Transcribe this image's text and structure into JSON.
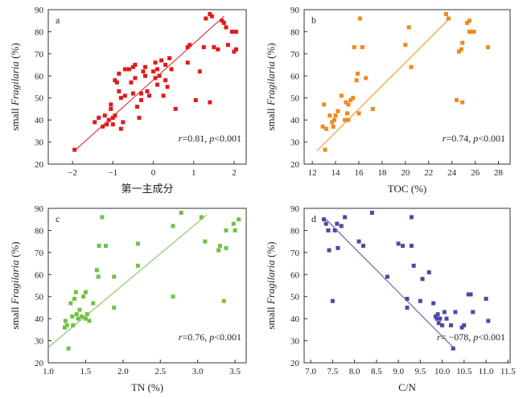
{
  "chart_data": [
    {
      "panel_label": "a",
      "type": "scatter",
      "xlabel": "第一主成分",
      "ylabel_prefix": "small ",
      "ylabel_italic": "Fragilaria",
      "ylabel_suffix": " (%)",
      "xlim": [
        -2.6,
        2.3
      ],
      "ylim": [
        20,
        90
      ],
      "xticks": [
        -2,
        -1,
        0,
        1,
        2
      ],
      "xtick_labels": [
        "−2",
        "−1",
        "0",
        "1",
        "2"
      ],
      "yticks": [
        20,
        30,
        40,
        50,
        60,
        70,
        80,
        90
      ],
      "color": "#e01b1b",
      "marker": "square",
      "annotation": "r=0.81, p<0.001",
      "fit_line": [
        [
          -1.95,
          26
        ],
        [
          1.75,
          87
        ]
      ],
      "points": [
        [
          -1.95,
          26.5
        ],
        [
          -1.45,
          39
        ],
        [
          -1.35,
          41
        ],
        [
          -1.25,
          37
        ],
        [
          -1.2,
          42
        ],
        [
          -1.15,
          38
        ],
        [
          -1.1,
          40
        ],
        [
          -1.05,
          45
        ],
        [
          -1.05,
          47
        ],
        [
          -1.0,
          38
        ],
        [
          -1.0,
          41
        ],
        [
          -0.95,
          42
        ],
        [
          -0.95,
          58
        ],
        [
          -0.9,
          57
        ],
        [
          -0.85,
          61
        ],
        [
          -0.85,
          53
        ],
        [
          -0.8,
          50
        ],
        [
          -0.8,
          36
        ],
        [
          -0.75,
          39
        ],
        [
          -0.7,
          51
        ],
        [
          -0.7,
          63
        ],
        [
          -0.6,
          63
        ],
        [
          -0.55,
          57
        ],
        [
          -0.5,
          52
        ],
        [
          -0.5,
          64
        ],
        [
          -0.45,
          59
        ],
        [
          -0.45,
          65
        ],
        [
          -0.4,
          46
        ],
        [
          -0.35,
          41
        ],
        [
          -0.3,
          49
        ],
        [
          -0.3,
          52
        ],
        [
          -0.25,
          62
        ],
        [
          -0.2,
          60
        ],
        [
          -0.2,
          64
        ],
        [
          -0.15,
          53
        ],
        [
          -0.1,
          51
        ],
        [
          0.0,
          62
        ],
        [
          0.05,
          59
        ],
        [
          0.05,
          66
        ],
        [
          0.1,
          63
        ],
        [
          0.1,
          56
        ],
        [
          0.15,
          60
        ],
        [
          0.2,
          67
        ],
        [
          0.25,
          51
        ],
        [
          0.3,
          65
        ],
        [
          0.3,
          58
        ],
        [
          0.35,
          55
        ],
        [
          0.4,
          68
        ],
        [
          0.45,
          63
        ],
        [
          0.55,
          45
        ],
        [
          0.85,
          73
        ],
        [
          0.85,
          66
        ],
        [
          0.9,
          74
        ],
        [
          1.05,
          49
        ],
        [
          1.15,
          62
        ],
        [
          1.25,
          73
        ],
        [
          1.3,
          86
        ],
        [
          1.4,
          88
        ],
        [
          1.4,
          48
        ],
        [
          1.45,
          87
        ],
        [
          1.5,
          73
        ],
        [
          1.6,
          72
        ],
        [
          1.7,
          85
        ],
        [
          1.75,
          84
        ],
        [
          1.8,
          82
        ],
        [
          1.85,
          74
        ],
        [
          1.95,
          80
        ],
        [
          2.0,
          71
        ],
        [
          2.05,
          80
        ],
        [
          2.05,
          72
        ]
      ]
    },
    {
      "panel_label": "b",
      "type": "scatter",
      "xlabel": "TOC (%)",
      "ylabel_prefix": "small ",
      "ylabel_italic": "Fragilaria",
      "ylabel_suffix": " (%)",
      "xlim": [
        11.3,
        29
      ],
      "ylim": [
        20,
        90
      ],
      "xticks": [
        12,
        14,
        16,
        18,
        20,
        22,
        24,
        26,
        28
      ],
      "xtick_labels": [
        "12",
        "14",
        "16",
        "18",
        "20",
        "22",
        "24",
        "26",
        "28"
      ],
      "yticks": [
        20,
        30,
        40,
        50,
        60,
        70,
        80,
        90
      ],
      "color": "#f0891a",
      "marker": "square",
      "annotation": "r=0.74, p<0.001",
      "fit_line": [
        [
          12.4,
          26
        ],
        [
          23.8,
          86
        ]
      ],
      "points": [
        [
          12.9,
          37
        ],
        [
          13.0,
          47
        ],
        [
          13.1,
          26.5
        ],
        [
          13.2,
          36
        ],
        [
          13.5,
          42
        ],
        [
          13.7,
          39
        ],
        [
          13.8,
          37
        ],
        [
          13.9,
          40
        ],
        [
          14.0,
          42
        ],
        [
          14.2,
          44
        ],
        [
          14.5,
          51
        ],
        [
          14.8,
          40
        ],
        [
          14.9,
          48
        ],
        [
          15.0,
          43
        ],
        [
          15.1,
          47
        ],
        [
          15.1,
          40
        ],
        [
          15.3,
          49
        ],
        [
          15.5,
          50
        ],
        [
          15.6,
          73
        ],
        [
          15.8,
          58
        ],
        [
          15.9,
          61
        ],
        [
          16.0,
          43
        ],
        [
          16.1,
          86
        ],
        [
          16.3,
          73
        ],
        [
          16.6,
          59
        ],
        [
          17.2,
          45
        ],
        [
          20.0,
          74
        ],
        [
          20.3,
          82
        ],
        [
          20.5,
          64
        ],
        [
          23.5,
          88
        ],
        [
          23.7,
          86
        ],
        [
          24.4,
          49
        ],
        [
          24.6,
          71
        ],
        [
          24.8,
          72
        ],
        [
          24.9,
          48
        ],
        [
          24.9,
          75
        ],
        [
          25.3,
          84
        ],
        [
          25.5,
          85
        ],
        [
          25.5,
          80
        ],
        [
          25.7,
          80
        ],
        [
          25.9,
          80
        ],
        [
          27.1,
          73
        ]
      ]
    },
    {
      "panel_label": "c",
      "type": "scatter",
      "xlabel": "TN (%)",
      "ylabel_prefix": "small ",
      "ylabel_italic": "Fragilaria",
      "ylabel_suffix": " (%)",
      "xlim": [
        1.0,
        3.65
      ],
      "ylim": [
        20,
        90
      ],
      "xticks": [
        1.0,
        1.5,
        2.0,
        2.5,
        3.0,
        3.5
      ],
      "xtick_labels": [
        "1.0",
        "1.5",
        "2.0",
        "2.5",
        "3.0",
        "3.5"
      ],
      "yticks": [
        20,
        30,
        40,
        50,
        60,
        70,
        80,
        90
      ],
      "color": "#72c043",
      "marker": "square",
      "annotation": "r=0.76, p<0.001",
      "fit_line": [
        [
          1.0,
          27
        ],
        [
          3.12,
          87
        ]
      ],
      "points": [
        [
          1.22,
          36
        ],
        [
          1.23,
          39
        ],
        [
          1.25,
          37
        ],
        [
          1.27,
          26.5
        ],
        [
          1.3,
          47
        ],
        [
          1.32,
          41
        ],
        [
          1.33,
          37
        ],
        [
          1.35,
          49
        ],
        [
          1.37,
          52
        ],
        [
          1.38,
          42
        ],
        [
          1.4,
          40
        ],
        [
          1.42,
          44
        ],
        [
          1.45,
          41
        ],
        [
          1.47,
          50
        ],
        [
          1.5,
          40
        ],
        [
          1.5,
          52
        ],
        [
          1.52,
          42
        ],
        [
          1.55,
          39
        ],
        [
          1.6,
          47
        ],
        [
          1.65,
          62
        ],
        [
          1.67,
          59
        ],
        [
          1.68,
          73
        ],
        [
          1.72,
          86
        ],
        [
          1.77,
          73
        ],
        [
          1.88,
          59
        ],
        [
          1.88,
          45
        ],
        [
          2.2,
          74
        ],
        [
          2.2,
          64
        ],
        [
          2.67,
          82
        ],
        [
          2.67,
          50
        ],
        [
          2.78,
          88
        ],
        [
          3.05,
          86
        ],
        [
          3.1,
          75
        ],
        [
          3.28,
          71
        ],
        [
          3.3,
          73
        ],
        [
          3.35,
          48
        ],
        [
          3.38,
          72
        ],
        [
          3.38,
          80
        ],
        [
          3.48,
          83
        ],
        [
          3.5,
          80
        ],
        [
          3.55,
          85
        ]
      ]
    },
    {
      "panel_label": "d",
      "type": "scatter",
      "xlabel": "C/N",
      "ylabel_prefix": "small ",
      "ylabel_italic": "Fragilaria",
      "ylabel_suffix": " (%)",
      "xlim": [
        6.85,
        11.55
      ],
      "ylim": [
        20,
        90
      ],
      "xticks": [
        7.0,
        7.5,
        8.0,
        8.5,
        9.0,
        9.5,
        10.0,
        10.5,
        11.0,
        11.5
      ],
      "xtick_labels": [
        "7.0",
        "7.5",
        "8.0",
        "8.5",
        "9.0",
        "9.5",
        "10.0",
        "10.5",
        "11.0",
        "11.5"
      ],
      "yticks": [
        20,
        30,
        40,
        50,
        60,
        70,
        80,
        90
      ],
      "color": "#4b4aa3",
      "marker": "square",
      "annotation": "r= −078, p<0.001",
      "fit_line": [
        [
          7.3,
          86
        ],
        [
          10.3,
          26
        ]
      ],
      "points": [
        [
          7.3,
          85
        ],
        [
          7.35,
          83
        ],
        [
          7.4,
          80
        ],
        [
          7.42,
          71
        ],
        [
          7.5,
          48
        ],
        [
          7.55,
          80
        ],
        [
          7.6,
          83
        ],
        [
          7.62,
          72
        ],
        [
          7.7,
          82
        ],
        [
          7.78,
          86
        ],
        [
          8.1,
          75
        ],
        [
          8.2,
          73
        ],
        [
          8.4,
          88
        ],
        [
          8.75,
          59
        ],
        [
          9.0,
          74
        ],
        [
          9.1,
          73
        ],
        [
          9.2,
          45
        ],
        [
          9.2,
          49
        ],
        [
          9.3,
          86
        ],
        [
          9.3,
          73
        ],
        [
          9.35,
          64
        ],
        [
          9.5,
          48
        ],
        [
          9.55,
          58
        ],
        [
          9.7,
          61
        ],
        [
          9.8,
          47
        ],
        [
          9.85,
          41
        ],
        [
          9.88,
          40
        ],
        [
          9.9,
          42
        ],
        [
          9.92,
          38
        ],
        [
          9.95,
          40
        ],
        [
          10.0,
          37
        ],
        [
          10.05,
          43
        ],
        [
          10.1,
          40
        ],
        [
          10.2,
          37
        ],
        [
          10.25,
          26.5
        ],
        [
          10.3,
          43
        ],
        [
          10.45,
          36
        ],
        [
          10.5,
          37
        ],
        [
          10.6,
          51
        ],
        [
          10.65,
          51
        ],
        [
          10.7,
          43
        ],
        [
          11.0,
          49
        ],
        [
          11.05,
          39
        ]
      ]
    }
  ]
}
